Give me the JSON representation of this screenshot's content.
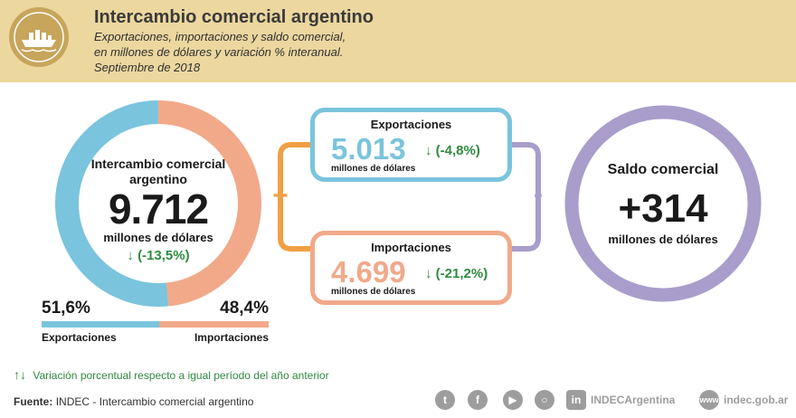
{
  "header": {
    "title": "Intercambio comercial argentino",
    "subtitle_lines": [
      "Exportaciones, importaciones y saldo comercial,",
      "en millones de dólares y variación % interanual.",
      "Septiembre de 2018"
    ],
    "icon": "ship-icon"
  },
  "donut": {
    "label_line1": "Intercambio comercial",
    "label_line2": "argentino",
    "value": "9.712",
    "unit": "millones de dólares",
    "variation": "(-13,5%)",
    "exports_share": 51.6,
    "imports_share": 48.4,
    "exports_pct_label": "51,6%",
    "imports_pct_label": "48,4%",
    "exports_label": "Exportaciones",
    "imports_label": "Importaciones"
  },
  "exports_box": {
    "title": "Exportaciones",
    "value": "5.013",
    "unit": "millones de dólares",
    "variation": "(-4,8%)"
  },
  "imports_box": {
    "title": "Importaciones",
    "value": "4.699",
    "unit": "millones de dólares",
    "variation": "(-21,2%)"
  },
  "operators": {
    "plus": "+",
    "minus": "-"
  },
  "balance": {
    "title": "Saldo comercial",
    "value": "+314",
    "unit": "millones de dólares"
  },
  "legend_note": "Variación porcentual respecto a igual período del año anterior",
  "footer": {
    "source_label": "Fuente:",
    "source_text": "INDEC - Intercambio comercial argentino",
    "social_handle": "INDECArgentina",
    "website": "indec.gob.ar"
  },
  "colors": {
    "exports": "#7ac4dd",
    "imports": "#f1a98a",
    "balance": "#a99dcb",
    "connector": "#f0a044",
    "arrow_green": "#2e8b3e"
  }
}
